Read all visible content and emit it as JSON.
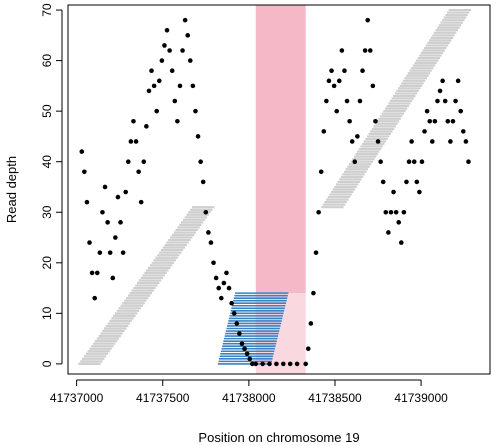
{
  "chart_data": {
    "type": "scatter",
    "title": "",
    "xlabel": "Position on chromosome 19",
    "ylabel": "Read depth",
    "xlim": [
      41736950,
      41739400
    ],
    "ylim": [
      -2,
      71
    ],
    "x_ticks": [
      41737000,
      41737500,
      41738000,
      41738500,
      41739000
    ],
    "x_tick_labels": [
      "41737000",
      "41737500",
      "41738000",
      "41738500",
      "41739000"
    ],
    "y_ticks": [
      0,
      10,
      20,
      30,
      40,
      50,
      60,
      70
    ],
    "y_tick_labels": [
      "0",
      "10",
      "20",
      "30",
      "40",
      "50",
      "60",
      "70"
    ],
    "highlight_region": {
      "x_start": 41738040,
      "x_end": 41738330,
      "color": "#f4b8c6"
    },
    "series": [
      {
        "role": "depth-points",
        "color": "#000000",
        "points": [
          [
            41737030,
            42
          ],
          [
            41737045,
            38
          ],
          [
            41737060,
            32
          ],
          [
            41737075,
            24
          ],
          [
            41737090,
            18
          ],
          [
            41737105,
            13
          ],
          [
            41737120,
            18
          ],
          [
            41737135,
            22
          ],
          [
            41737150,
            30
          ],
          [
            41737165,
            35
          ],
          [
            41737180,
            28
          ],
          [
            41737195,
            22
          ],
          [
            41737210,
            17
          ],
          [
            41737225,
            25
          ],
          [
            41737240,
            33
          ],
          [
            41737255,
            28
          ],
          [
            41737270,
            22
          ],
          [
            41737285,
            34
          ],
          [
            41737300,
            40
          ],
          [
            41737315,
            44
          ],
          [
            41737330,
            48
          ],
          [
            41737345,
            44
          ],
          [
            41737360,
            38
          ],
          [
            41737375,
            32
          ],
          [
            41737390,
            40
          ],
          [
            41737405,
            47
          ],
          [
            41737420,
            54
          ],
          [
            41737435,
            58
          ],
          [
            41737450,
            55
          ],
          [
            41737465,
            50
          ],
          [
            41737480,
            56
          ],
          [
            41737495,
            60
          ],
          [
            41737510,
            63
          ],
          [
            41737525,
            66
          ],
          [
            41737540,
            62
          ],
          [
            41737555,
            58
          ],
          [
            41737570,
            52
          ],
          [
            41737585,
            48
          ],
          [
            41737600,
            55
          ],
          [
            41737615,
            62
          ],
          [
            41737630,
            68
          ],
          [
            41737645,
            65
          ],
          [
            41737660,
            60
          ],
          [
            41737675,
            55
          ],
          [
            41737690,
            50
          ],
          [
            41737705,
            45
          ],
          [
            41737720,
            40
          ],
          [
            41737735,
            36
          ],
          [
            41737750,
            30
          ],
          [
            41737765,
            26
          ],
          [
            41737780,
            24
          ],
          [
            41737795,
            20
          ],
          [
            41737810,
            17
          ],
          [
            41737825,
            15
          ],
          [
            41737840,
            13
          ],
          [
            41737855,
            16
          ],
          [
            41737870,
            18
          ],
          [
            41737885,
            15
          ],
          [
            41737900,
            12
          ],
          [
            41737915,
            10
          ],
          [
            41737930,
            8
          ],
          [
            41737945,
            6
          ],
          [
            41737960,
            4
          ],
          [
            41737975,
            3
          ],
          [
            41737990,
            2
          ],
          [
            41738005,
            1
          ],
          [
            41738020,
            0
          ],
          [
            41738040,
            0
          ],
          [
            41738080,
            0
          ],
          [
            41738120,
            0
          ],
          [
            41738160,
            0
          ],
          [
            41738200,
            0
          ],
          [
            41738240,
            0
          ],
          [
            41738280,
            0
          ],
          [
            41738330,
            0
          ],
          [
            41738345,
            3
          ],
          [
            41738360,
            8
          ],
          [
            41738375,
            14
          ],
          [
            41738390,
            22
          ],
          [
            41738405,
            30
          ],
          [
            41738420,
            38
          ],
          [
            41738435,
            46
          ],
          [
            41738450,
            52
          ],
          [
            41738465,
            56
          ],
          [
            41738480,
            58
          ],
          [
            41738495,
            55
          ],
          [
            41738510,
            50
          ],
          [
            41738525,
            56
          ],
          [
            41738540,
            62
          ],
          [
            41738555,
            58
          ],
          [
            41738570,
            52
          ],
          [
            41738585,
            48
          ],
          [
            41738600,
            44
          ],
          [
            41738615,
            40
          ],
          [
            41738630,
            45
          ],
          [
            41738645,
            52
          ],
          [
            41738660,
            58
          ],
          [
            41738675,
            62
          ],
          [
            41738690,
            68
          ],
          [
            41738705,
            62
          ],
          [
            41738720,
            55
          ],
          [
            41738735,
            48
          ],
          [
            41738750,
            44
          ],
          [
            41738765,
            40
          ],
          [
            41738780,
            36
          ],
          [
            41738795,
            30
          ],
          [
            41738810,
            26
          ],
          [
            41738825,
            30
          ],
          [
            41738840,
            34
          ],
          [
            41738855,
            30
          ],
          [
            41738870,
            28
          ],
          [
            41738885,
            24
          ],
          [
            41738900,
            30
          ],
          [
            41738915,
            36
          ],
          [
            41738930,
            40
          ],
          [
            41738945,
            44
          ],
          [
            41738960,
            40
          ],
          [
            41738975,
            36
          ],
          [
            41738990,
            34
          ],
          [
            41739005,
            40
          ],
          [
            41739020,
            46
          ],
          [
            41739035,
            50
          ],
          [
            41739050,
            48
          ],
          [
            41739065,
            44
          ],
          [
            41739080,
            48
          ],
          [
            41739095,
            52
          ],
          [
            41739110,
            54
          ],
          [
            41739125,
            56
          ],
          [
            41739140,
            52
          ],
          [
            41739155,
            48
          ],
          [
            41739170,
            44
          ],
          [
            41739185,
            48
          ],
          [
            41739200,
            52
          ],
          [
            41739215,
            56
          ],
          [
            41739230,
            50
          ],
          [
            41739245,
            46
          ],
          [
            41739260,
            44
          ],
          [
            41739275,
            40
          ]
        ]
      },
      {
        "role": "reads-grey-1",
        "color": "#cfcfcf",
        "x_start": 41737010,
        "x_end": 41737800,
        "y_start": 0,
        "y_end": 31,
        "read_length": 130
      },
      {
        "role": "reads-grey-2",
        "color": "#cfcfcf",
        "x_start": 41738420,
        "x_end": 41739290,
        "y_start": 31,
        "y_end": 70,
        "read_length": 130
      },
      {
        "role": "reads-blue",
        "color": "#3a82c4",
        "x_start": 41737820,
        "x_end": 41738230,
        "y_start": 0,
        "y_end": 14,
        "read_length": 310
      }
    ]
  }
}
